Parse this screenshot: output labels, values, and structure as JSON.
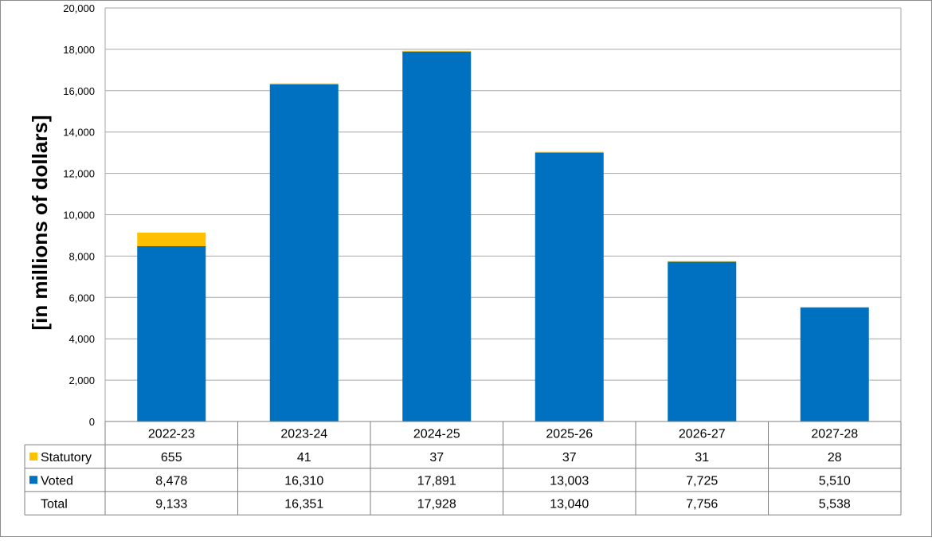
{
  "chart_data": {
    "type": "bar",
    "stacked": true,
    "ylabel": "[in millions of dollars]",
    "ylim": [
      0,
      20000
    ],
    "yticks": [
      0,
      2000,
      4000,
      6000,
      8000,
      10000,
      12000,
      14000,
      16000,
      18000,
      20000
    ],
    "ytick_labels": [
      "0",
      "2,000",
      "4,000",
      "6,000",
      "8,000",
      "10,000",
      "12,000",
      "14,000",
      "16,000",
      "18,000",
      "20,000"
    ],
    "grid": true,
    "categories": [
      "2022-23",
      "2023-24",
      "2024-25",
      "2025-26",
      "2026-27",
      "2027-28"
    ],
    "series": [
      {
        "name": "Voted",
        "color": "#0070C0",
        "values": [
          8478,
          16310,
          17891,
          13003,
          7725,
          5510
        ],
        "labels": [
          "8,478",
          "16,310",
          "17,891",
          "13,003",
          "7,725",
          "5,510"
        ]
      },
      {
        "name": "Statutory",
        "color": "#FFC000",
        "values": [
          655,
          41,
          37,
          37,
          31,
          28
        ],
        "labels": [
          "655",
          "41",
          "37",
          "37",
          "31",
          "28"
        ]
      }
    ],
    "table": {
      "rows": [
        {
          "name": "Statutory",
          "series": "Statutory",
          "color": "#FFC000",
          "labels": [
            "655",
            "41",
            "37",
            "37",
            "31",
            "28"
          ]
        },
        {
          "name": "Voted",
          "series": "Voted",
          "color": "#0070C0",
          "labels": [
            "8,478",
            "16,310",
            "17,891",
            "13,003",
            "7,725",
            "5,510"
          ]
        },
        {
          "name": "Total",
          "series": null,
          "color": null,
          "labels": [
            "9,133",
            "16,351",
            "17,928",
            "13,040",
            "7,756",
            "5,538"
          ]
        }
      ]
    }
  }
}
